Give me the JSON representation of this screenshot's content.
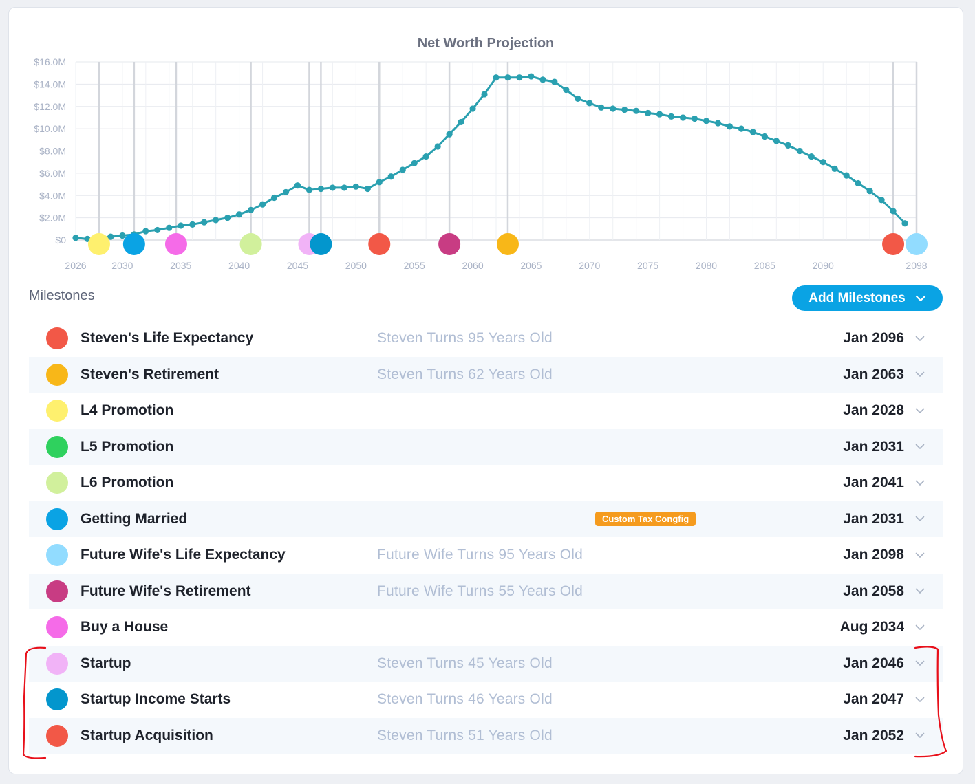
{
  "chart_data": {
    "type": "line",
    "title": "Net Worth Projection",
    "xlim": [
      2026,
      2098
    ],
    "ylim": [
      0,
      16
    ],
    "x_ticks": [
      "2026",
      "2030",
      "2035",
      "2040",
      "2045",
      "2050",
      "2055",
      "2060",
      "2065",
      "2070",
      "2075",
      "2080",
      "2085",
      "2090",
      "2098"
    ],
    "y_ticks": [
      "$16.0M",
      "$14.0M",
      "$12.0M",
      "$10.0M",
      "$8.0M",
      "$6.0M",
      "$4.0M",
      "$2.0M",
      "$0"
    ],
    "y_tick_values": [
      16,
      14,
      12,
      10,
      8,
      6,
      4,
      2,
      0
    ],
    "series": [
      {
        "color": "#2aa0b0",
        "x": [
          2026,
          2027,
          2028,
          2029,
          2030,
          2031,
          2032,
          2033,
          2034,
          2035,
          2036,
          2037,
          2038,
          2039,
          2040,
          2041,
          2042,
          2043,
          2044,
          2045,
          2046,
          2047,
          2048,
          2049,
          2050,
          2051,
          2052,
          2053,
          2054,
          2055,
          2056,
          2057,
          2058,
          2059,
          2060,
          2061,
          2062,
          2063,
          2064,
          2065,
          2066,
          2067,
          2068,
          2069,
          2070,
          2071,
          2072,
          2073,
          2074,
          2075,
          2076,
          2077,
          2078,
          2079,
          2080,
          2081,
          2082,
          2083,
          2084,
          2085,
          2086,
          2087,
          2088,
          2089,
          2090,
          2091,
          2092,
          2093,
          2094,
          2095,
          2096,
          2097
        ],
        "values": [
          0.2,
          0.1,
          0.2,
          0.3,
          0.4,
          0.5,
          0.8,
          0.9,
          1.1,
          1.3,
          1.4,
          1.6,
          1.8,
          2.0,
          2.3,
          2.7,
          3.2,
          3.8,
          4.3,
          4.9,
          4.5,
          4.6,
          4.7,
          4.7,
          4.8,
          4.6,
          5.2,
          5.7,
          6.3,
          6.9,
          7.5,
          8.4,
          9.5,
          10.6,
          11.8,
          13.1,
          14.6,
          14.6,
          14.6,
          14.7,
          14.4,
          14.2,
          13.5,
          12.7,
          12.3,
          11.9,
          11.8,
          11.7,
          11.6,
          11.4,
          11.3,
          11.1,
          11.0,
          10.9,
          10.7,
          10.5,
          10.2,
          10.0,
          9.7,
          9.3,
          8.9,
          8.5,
          8.0,
          7.5,
          7.0,
          6.4,
          5.8,
          5.1,
          4.4,
          3.6,
          2.6,
          1.5
        ]
      }
    ],
    "milestone_markers": [
      {
        "x": 2028,
        "color": "#fef06e"
      },
      {
        "x": 2031,
        "color": "#0aa3e4"
      },
      {
        "x": 2034.6,
        "color": "#f56be8"
      },
      {
        "x": 2041,
        "color": "#d1f09c"
      },
      {
        "x": 2046,
        "color": "#f1b3f7"
      },
      {
        "x": 2047,
        "color": "#0396cd"
      },
      {
        "x": 2052,
        "color": "#f25847"
      },
      {
        "x": 2058,
        "color": "#c83c83"
      },
      {
        "x": 2063,
        "color": "#f8b718"
      },
      {
        "x": 2096,
        "color": "#f25847"
      },
      {
        "x": 2098,
        "color": "#92dcff"
      }
    ]
  },
  "milestones": {
    "heading": "Milestones",
    "add_button_label": "Add Milestones",
    "items": [
      {
        "name": "Steven's Life Expectancy",
        "desc": "Steven Turns 95 Years Old",
        "badge": "",
        "date": "Jan 2096",
        "color": "#f25847"
      },
      {
        "name": "Steven's Retirement",
        "desc": "Steven Turns 62 Years Old",
        "badge": "",
        "date": "Jan 2063",
        "color": "#f8b718"
      },
      {
        "name": "L4 Promotion",
        "desc": "",
        "badge": "",
        "date": "Jan 2028",
        "color": "#fef06e"
      },
      {
        "name": "L5 Promotion",
        "desc": "",
        "badge": "",
        "date": "Jan 2031",
        "color": "#2fd15e"
      },
      {
        "name": "L6 Promotion",
        "desc": "",
        "badge": "",
        "date": "Jan 2041",
        "color": "#d1f09c"
      },
      {
        "name": "Getting Married",
        "desc": "",
        "badge": "Custom Tax Congfig",
        "date": "Jan 2031",
        "color": "#0aa3e4"
      },
      {
        "name": "Future Wife's Life Expectancy",
        "desc": "Future Wife Turns 95 Years Old",
        "badge": "",
        "date": "Jan 2098",
        "color": "#92dcff"
      },
      {
        "name": "Future Wife's Retirement",
        "desc": "Future Wife Turns 55 Years Old",
        "badge": "",
        "date": "Jan 2058",
        "color": "#c83c83"
      },
      {
        "name": "Buy a House",
        "desc": "",
        "badge": "",
        "date": "Aug 2034",
        "color": "#f56be8"
      },
      {
        "name": "Startup",
        "desc": "Steven Turns 45 Years Old",
        "badge": "",
        "date": "Jan 2046",
        "color": "#f1b3f7"
      },
      {
        "name": "Startup Income Starts",
        "desc": "Steven Turns 46 Years Old",
        "badge": "",
        "date": "Jan 2047",
        "color": "#0396cd"
      },
      {
        "name": "Startup Acquisition",
        "desc": "Steven Turns 51 Years Old",
        "badge": "",
        "date": "Jan 2052",
        "color": "#f25847"
      }
    ]
  }
}
